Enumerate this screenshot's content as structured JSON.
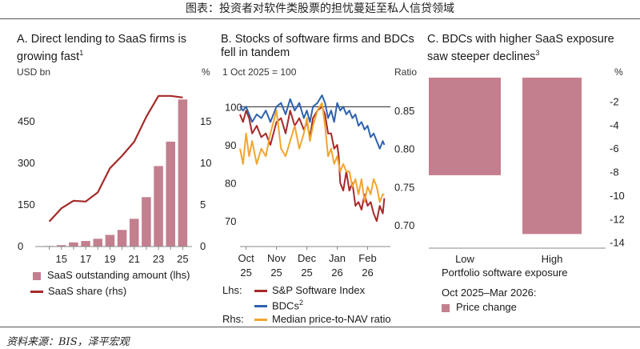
{
  "header": {
    "title": "图表：投资者对软件类股票的担忧蔓延至私人信贷领域"
  },
  "source": "资料来源：BIS，泽平宏观",
  "panel_a": {
    "title_line1": "A. Direct lending to SaaS firms is",
    "title_line2": "growing fast",
    "title_sup": "1",
    "left_unit": "USD bn",
    "right_unit": "%",
    "legend": {
      "bar_label": "SaaS outstanding amount (lhs)",
      "line_label": "SaaS share (rhs)"
    }
  },
  "panel_b": {
    "title_line1": "B. Stocks of software firms and BDCs",
    "title_line2": "fell in tandem",
    "left_unit": "1 Oct 2025 = 100",
    "right_unit": "Ratio",
    "legend": {
      "lhs": "Lhs:",
      "rhs": "Rhs:",
      "sp": "S&P Software Index",
      "bdc": "BDCs",
      "bdc_sup": "2",
      "nav": "Median price-to-NAV ratio"
    }
  },
  "panel_c": {
    "title_line1": "C. BDCs with higher SaaS exposure",
    "title_line2": "saw steeper declines",
    "title_sup": "3",
    "right_unit": "%",
    "xlabel": "Portfolio software exposure",
    "legend": {
      "period": "Oct 2025–Mar 2026:",
      "label": "Price change"
    }
  },
  "chart_data": [
    {
      "type": "bar",
      "panel": "A",
      "categories": [
        "14",
        "15",
        "16",
        "17",
        "18",
        "19",
        "20",
        "21",
        "22",
        "23",
        "24",
        "25"
      ],
      "x_tick_labels": [
        "15",
        "17",
        "19",
        "21",
        "23",
        "25"
      ],
      "series": [
        {
          "name": "SaaS outstanding amount (lhs)",
          "axis": "left",
          "color": "#c47f8e",
          "values": [
            2,
            5,
            15,
            20,
            28,
            42,
            60,
            100,
            178,
            290,
            378,
            530
          ]
        },
        {
          "name": "SaaS share (rhs)",
          "axis": "right",
          "kind": "line",
          "color": "#a52a2a",
          "values": [
            3.0,
            4.6,
            5.5,
            5.4,
            6.5,
            9.4,
            10.9,
            12.6,
            15.6,
            18.1,
            18.1,
            17.9
          ]
        }
      ],
      "ylim_left": [
        0,
        600
      ],
      "yticks_left": [
        0,
        150,
        300,
        450
      ],
      "ylim_right": [
        0,
        20
      ],
      "yticks_right": [
        0,
        5,
        10,
        15
      ]
    },
    {
      "type": "line",
      "panel": "B",
      "x_tick_labels": [
        [
          "Oct",
          "25"
        ],
        [
          "Nov",
          "25"
        ],
        [
          "Dec",
          "25"
        ],
        [
          "Jan",
          "26"
        ],
        [
          "Feb",
          "26"
        ]
      ],
      "x_ticks_month": [
        0,
        1,
        2,
        3,
        4
      ],
      "x_range_month": [
        -0.2,
        4.75
      ],
      "ylim_left": [
        65,
        107
      ],
      "yticks_left": [
        70,
        80,
        90,
        100
      ],
      "ylim_right": [
        0.68,
        0.89
      ],
      "yticks_right": [
        0.7,
        0.75,
        0.8,
        0.85
      ],
      "reference_line_left": 100,
      "series": [
        {
          "name": "S&P Software Index",
          "axis": "left",
          "color": "#a52a2a",
          "x": [
            -0.2,
            -0.1,
            0,
            0.1,
            0.2,
            0.35,
            0.5,
            0.65,
            0.8,
            1,
            1.15,
            1.3,
            1.45,
            1.6,
            1.75,
            1.9,
            2,
            2.1,
            2.2,
            2.35,
            2.5,
            2.6,
            2.7,
            2.8,
            2.9,
            3,
            3.05,
            3.1,
            3.2,
            3.3,
            3.4,
            3.5,
            3.6,
            3.7,
            3.8,
            3.9,
            4,
            4.1,
            4.2,
            4.3,
            4.4,
            4.5,
            4.55
          ],
          "y": [
            98,
            96,
            99,
            97,
            93,
            95,
            92,
            93,
            90,
            96,
            97,
            93,
            99,
            95,
            97,
            94,
            96,
            92,
            97,
            99,
            100,
            98,
            93,
            93,
            89,
            90,
            87,
            80,
            78,
            83,
            78,
            80,
            74,
            75,
            73,
            77,
            74,
            75,
            72,
            70,
            74,
            72,
            76
          ]
        },
        {
          "name": "BDCs",
          "axis": "left",
          "color": "#2f62ad",
          "x": [
            -0.2,
            -0.1,
            0,
            0.1,
            0.2,
            0.35,
            0.5,
            0.65,
            0.8,
            1,
            1.15,
            1.3,
            1.45,
            1.6,
            1.75,
            1.9,
            2,
            2.1,
            2.2,
            2.35,
            2.5,
            2.6,
            2.7,
            2.8,
            2.9,
            3,
            3.1,
            3.2,
            3.3,
            3.4,
            3.5,
            3.6,
            3.7,
            3.8,
            3.9,
            4,
            4.1,
            4.2,
            4.3,
            4.4,
            4.5,
            4.55
          ],
          "y": [
            100,
            99,
            100,
            98,
            96,
            98,
            97,
            99,
            96,
            100,
            101,
            98,
            102,
            99,
            101,
            97,
            99,
            96,
            100,
            101,
            103,
            101,
            97,
            99,
            96,
            101,
            99,
            100,
            98,
            99,
            97,
            98,
            95,
            96,
            94,
            95,
            92,
            93,
            91,
            89,
            91,
            90
          ]
        },
        {
          "name": "Median price-to-NAV ratio",
          "axis": "right",
          "color": "#f0a630",
          "x": [
            -0.2,
            -0.1,
            0,
            0.1,
            0.2,
            0.35,
            0.5,
            0.65,
            0.8,
            1,
            1.15,
            1.3,
            1.45,
            1.6,
            1.75,
            1.9,
            2,
            2.1,
            2.2,
            2.35,
            2.5,
            2.6,
            2.7,
            2.8,
            2.9,
            3,
            3.1,
            3.2,
            3.3,
            3.4,
            3.5,
            3.6,
            3.7,
            3.8,
            3.9,
            4,
            4.1,
            4.2,
            4.3,
            4.4,
            4.5,
            4.55
          ],
          "y": [
            0.8,
            0.78,
            0.82,
            0.79,
            0.81,
            0.78,
            0.8,
            0.79,
            0.82,
            0.85,
            0.8,
            0.79,
            0.81,
            0.83,
            0.8,
            0.82,
            0.84,
            0.81,
            0.83,
            0.85,
            0.86,
            0.83,
            0.79,
            0.8,
            0.78,
            0.79,
            0.77,
            0.78,
            0.77,
            0.77,
            0.75,
            0.76,
            0.74,
            0.76,
            0.73,
            0.75,
            0.74,
            0.76,
            0.75,
            0.73,
            0.74,
            0.74
          ]
        }
      ]
    },
    {
      "type": "bar",
      "panel": "C",
      "categories": [
        "Low",
        "High"
      ],
      "series": [
        {
          "name": "Price change",
          "color": "#c47f8e",
          "values": [
            -8.3,
            -13.3
          ]
        }
      ],
      "ylim": [
        -14.5,
        0
      ],
      "yticks": [
        -2,
        -4,
        -6,
        -8,
        -10,
        -12,
        -14
      ],
      "xlabel": "Portfolio software exposure"
    }
  ]
}
